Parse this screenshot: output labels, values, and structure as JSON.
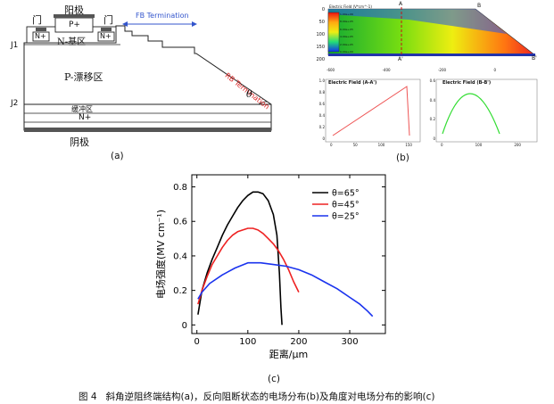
{
  "panel_a": {
    "gate_left": "门",
    "gate_right": "门",
    "anode": "阳极",
    "p_plus": "P+",
    "n_plus_left": "N+",
    "n_plus_right": "N+",
    "n_base": "N-基区",
    "p_drift": "P-漂移区",
    "buffer": "缓冲区",
    "n_plus_bottom": "N+",
    "cathode": "阴极",
    "j1": "J1",
    "j2": "J2",
    "fb_termination": "FB Termination",
    "rb_termination": "RB Termination",
    "theta": "θ",
    "label": "(a)"
  },
  "panel_b": {
    "contour_title": "Electric Field (V*cm^-1)",
    "point_a": "A",
    "point_a_prime": "A'",
    "point_b": "B",
    "point_b_prime": "B'",
    "y_ticks": [
      "0",
      "50",
      "100",
      "150",
      "200"
    ],
    "x_ticks": [
      "-600",
      "-400",
      "-200",
      "0"
    ],
    "legend_values": [
      "1.00e+06",
      "8.00e+05",
      "6.00e+05",
      "4.00e+05",
      "2.00e+05",
      "0.00e+00"
    ],
    "sub_left_title": "Electric Field (A-A')",
    "sub_left_yticks": [
      "1.0",
      "0.8",
      "0.6",
      "0.4",
      "0.2",
      "0"
    ],
    "sub_left_xticks": [
      "0",
      "50",
      "100",
      "150"
    ],
    "sub_right_title": "Electric Field (B-B')",
    "sub_right_yticks": [
      "0.6",
      "0.4",
      "0.2",
      "0"
    ],
    "sub_right_xticks": [
      "0",
      "100",
      "200"
    ],
    "label": "(b)"
  },
  "chart_data": {
    "type": "line",
    "xlabel": "距离/μm",
    "ylabel": "电场强度(MV cm⁻¹)",
    "xlim": [
      -10,
      370
    ],
    "ylim": [
      -0.05,
      0.87
    ],
    "x_ticks": [
      "0",
      "100",
      "200",
      "300"
    ],
    "y_ticks": [
      "0",
      "0.2",
      "0.4",
      "0.6",
      "0.8"
    ],
    "legend_position": "top-right",
    "series": [
      {
        "name": "θ=65°",
        "color": "#000000",
        "x": [
          2,
          10,
          20,
          30,
          40,
          50,
          60,
          70,
          80,
          90,
          100,
          110,
          120,
          130,
          140,
          150,
          157,
          162,
          165,
          167
        ],
        "y": [
          0.06,
          0.2,
          0.3,
          0.38,
          0.45,
          0.52,
          0.58,
          0.63,
          0.68,
          0.72,
          0.75,
          0.77,
          0.77,
          0.76,
          0.72,
          0.64,
          0.52,
          0.3,
          0.1,
          0.0
        ]
      },
      {
        "name": "θ=45°",
        "color": "#ee2222",
        "x": [
          2,
          10,
          20,
          30,
          40,
          50,
          60,
          70,
          80,
          90,
          100,
          110,
          120,
          130,
          140,
          150,
          160,
          170,
          180,
          190,
          200
        ],
        "y": [
          0.12,
          0.2,
          0.28,
          0.35,
          0.4,
          0.45,
          0.49,
          0.52,
          0.54,
          0.55,
          0.56,
          0.56,
          0.55,
          0.53,
          0.5,
          0.47,
          0.43,
          0.38,
          0.32,
          0.25,
          0.19
        ]
      },
      {
        "name": "θ=25°",
        "color": "#1a33ee",
        "x": [
          2,
          10,
          25,
          50,
          75,
          100,
          125,
          150,
          175,
          200,
          225,
          250,
          275,
          300,
          320,
          335,
          345
        ],
        "y": [
          0.15,
          0.19,
          0.24,
          0.29,
          0.33,
          0.36,
          0.36,
          0.35,
          0.34,
          0.32,
          0.29,
          0.25,
          0.21,
          0.16,
          0.12,
          0.08,
          0.05
        ]
      }
    ]
  },
  "label_c": "(c)",
  "caption": "图 4   斜角逆阻终端结构(a)，反向阻断状态的电场分布(b)及角度对电场分布的影响(c)"
}
